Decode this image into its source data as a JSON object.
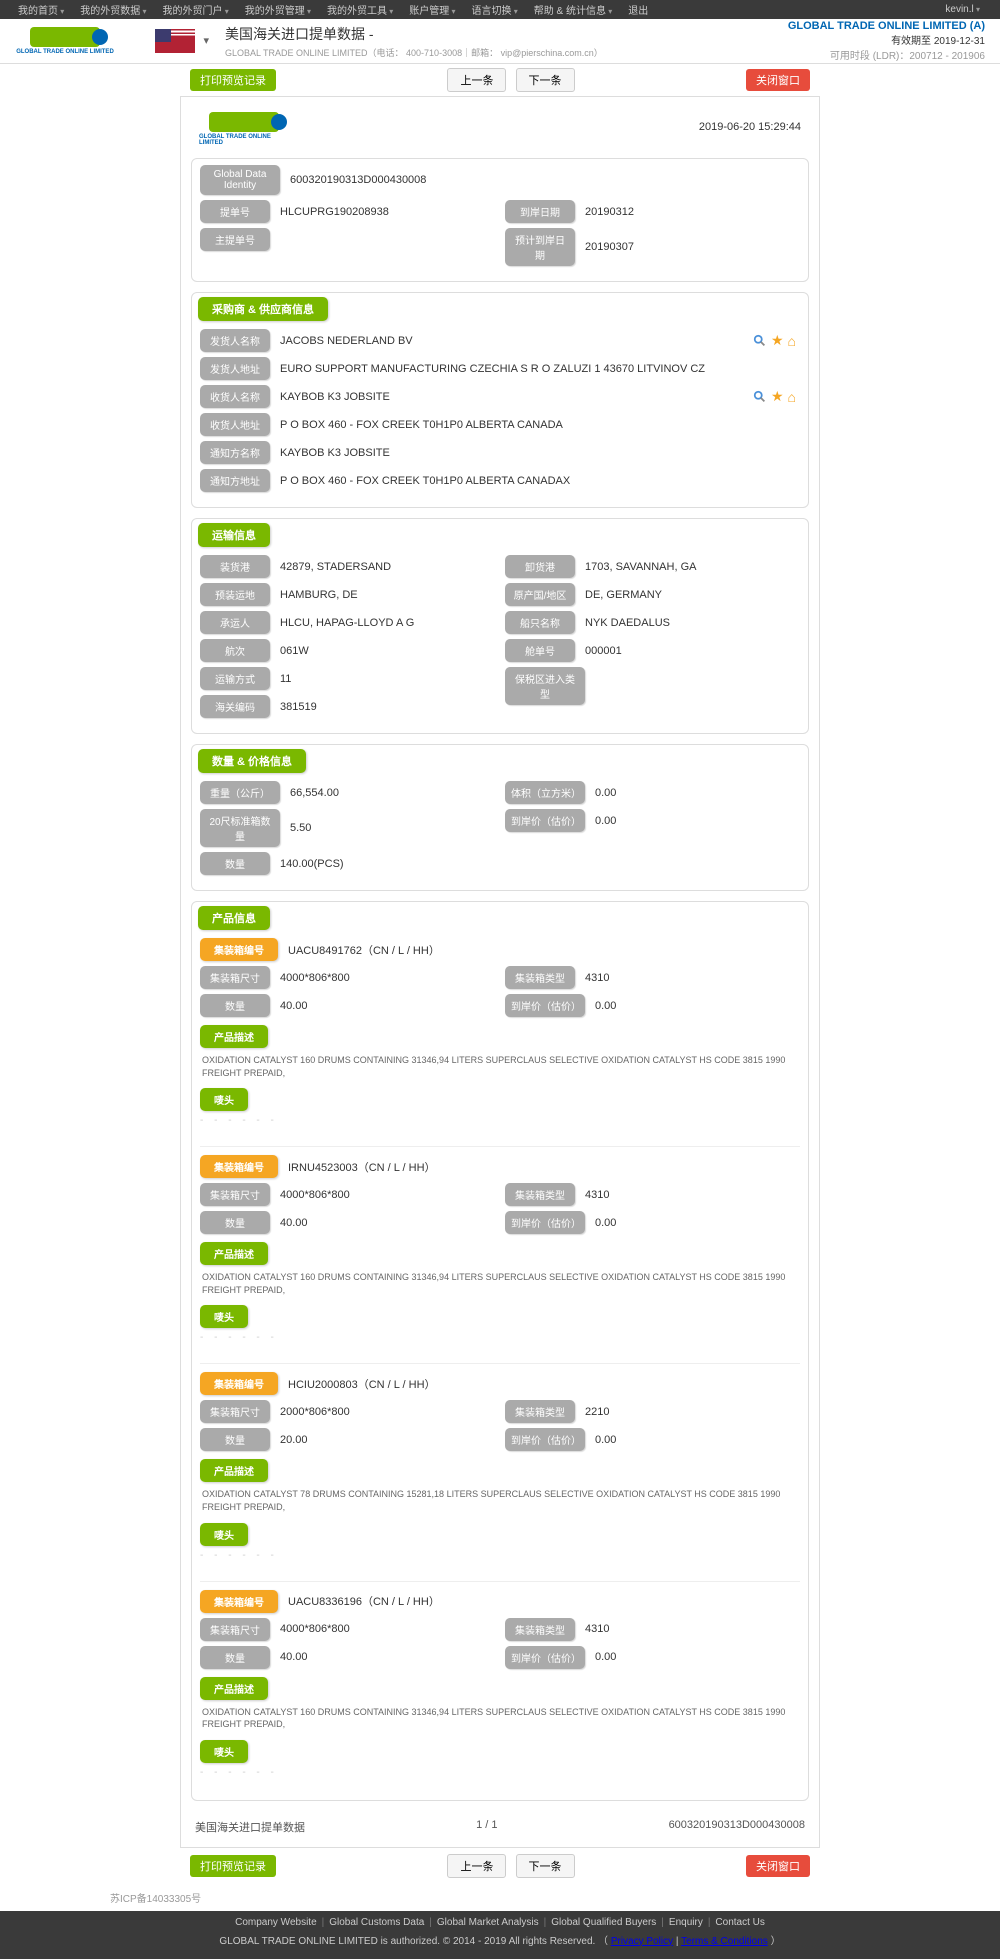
{
  "topnav": {
    "items": [
      "我的首页",
      "我的外贸数据",
      "我的外贸门户",
      "我的外贸管理",
      "我的外贸工具",
      "账户管理",
      "语言切换",
      "帮助 & 统计信息",
      "退出"
    ],
    "user": "kevin.l"
  },
  "header": {
    "title": "美国海关进口提单数据  - ",
    "subtitle": "GLOBAL TRADE ONLINE LIMITED（电话： 400-710-3008｜邮箱： vip@pierschina.com.cn）",
    "logo_text": "GLOBAL TRADE ONLINE LIMITED",
    "company": "GLOBAL TRADE ONLINE LIMITED (A)",
    "expire": "有效期至 2019-12-31",
    "ldr": "可用时段 (LDR)：200712 - 201906"
  },
  "actions": {
    "print": "打印预览记录",
    "prev": "上一条",
    "next": "下一条",
    "close": "关闭窗口"
  },
  "doc": {
    "time": "2019-06-20 15:29:44",
    "identity": {
      "gdi_label": "Global Data Identity",
      "gdi": "600320190313D000430008",
      "bl_label": "提单号",
      "bl": "HLCUPRG190208938",
      "master_label": "主提单号",
      "master": "",
      "arrive_label": "到岸日期",
      "arrive": "20190312",
      "est_label": "预计到岸日期",
      "est": "20190307"
    },
    "party_section": "采购商 & 供应商信息",
    "party": {
      "shipper_name_l": "发货人名称",
      "shipper_name": "JACOBS NEDERLAND BV",
      "shipper_addr_l": "发货人地址",
      "shipper_addr": "EURO SUPPORT MANUFACTURING CZECHIA S R O ZALUZI 1 43670 LITVINOV CZ",
      "consignee_name_l": "收货人名称",
      "consignee_name": "KAYBOB K3 JOBSITE",
      "consignee_addr_l": "收货人地址",
      "consignee_addr": "P O BOX 460 - FOX CREEK T0H1P0 ALBERTA CANADA",
      "notify_name_l": "通知方名称",
      "notify_name": "KAYBOB K3 JOBSITE",
      "notify_addr_l": "通知方地址",
      "notify_addr": "P O BOX 460 - FOX CREEK T0H1P0 ALBERTA CANADAX"
    },
    "transport_section": "运输信息",
    "transport": {
      "load_port_l": "装货港",
      "load_port": "42879, STADERSAND",
      "unload_port_l": "卸货港",
      "unload_port": "1703, SAVANNAH, GA",
      "preload_l": "预装运地",
      "preload": "HAMBURG, DE",
      "origin_l": "原产国/地区",
      "origin": "DE, GERMANY",
      "carrier_l": "承运人",
      "carrier": "HLCU, HAPAG-LLOYD A G",
      "vessel_l": "船只名称",
      "vessel": "NYK DAEDALUS",
      "voyage_l": "航次",
      "voyage": "061W",
      "manifest_l": "舱单号",
      "manifest": "000001",
      "mode_l": "运输方式",
      "mode": "11",
      "bonded_l": "保税区进入类型",
      "bonded": "",
      "hs_l": "海关编码",
      "hs": "381519"
    },
    "qty_section": "数量 & 价格信息",
    "qty": {
      "weight_l": "重量（公斤）",
      "weight": "66,554.00",
      "volume_l": "体积（立方米）",
      "volume": "0.00",
      "teu_l": "20尺标准箱数量",
      "teu": "5.50",
      "cif_l": "到岸价（估价）",
      "cif": "0.00",
      "pcs_l": "数量",
      "pcs": "140.00(PCS)"
    },
    "product_section": "产品信息",
    "labels": {
      "container_no": "集装箱编号",
      "container_size": "集装箱尺寸",
      "container_type": "集装箱类型",
      "qty": "数量",
      "cif": "到岸价（估价）",
      "desc": "产品描述",
      "mark": "唛头"
    },
    "containers": [
      {
        "no": "UACU8491762（CN / L / HH）",
        "size": "4000*806*800",
        "type": "4310",
        "qty": "40.00",
        "cif": "0.00",
        "desc": "OXIDATION CATALYST 160 DRUMS CONTAINING 31346,94 LITERS SUPERCLAUS SELECTIVE OXIDATION CATALYST HS CODE 3815 1990 FREIGHT PREPAID,"
      },
      {
        "no": "IRNU4523003（CN / L / HH）",
        "size": "4000*806*800",
        "type": "4310",
        "qty": "40.00",
        "cif": "0.00",
        "desc": "OXIDATION CATALYST 160 DRUMS CONTAINING 31346,94 LITERS SUPERCLAUS SELECTIVE OXIDATION CATALYST HS CODE 3815 1990 FREIGHT PREPAID,"
      },
      {
        "no": "HCIU2000803（CN / L / HH）",
        "size": "2000*806*800",
        "type": "2210",
        "qty": "20.00",
        "cif": "0.00",
        "desc": "OXIDATION CATALYST 78 DRUMS CONTAINING 15281,18 LITERS SUPERCLAUS SELECTIVE OXIDATION CATALYST HS CODE 3815 1990 FREIGHT PREPAID,"
      },
      {
        "no": "UACU8336196（CN / L / HH）",
        "size": "4000*806*800",
        "type": "4310",
        "qty": "40.00",
        "cif": "0.00",
        "desc": "OXIDATION CATALYST 160 DRUMS CONTAINING 31346,94 LITERS SUPERCLAUS SELECTIVE OXIDATION CATALYST HS CODE 3815 1990 FREIGHT PREPAID,"
      }
    ],
    "footer": {
      "left": "美国海关进口提单数据",
      "page": "1 / 1",
      "right": "600320190313D000430008"
    }
  },
  "footer": {
    "links": [
      "Company Website",
      "Global Customs Data",
      "Global Market Analysis",
      "Global Qualified Buyers",
      "Enquiry",
      "Contact Us"
    ],
    "copy_l": "GLOBAL TRADE ONLINE LIMITED is authorized. © 2014 - 2019 All rights Reserved.    （",
    "privacy": "Privacy Policy",
    "terms": "Terms & Conditions",
    "copy_r": "）",
    "icp": "苏ICP备14033305号"
  }
}
